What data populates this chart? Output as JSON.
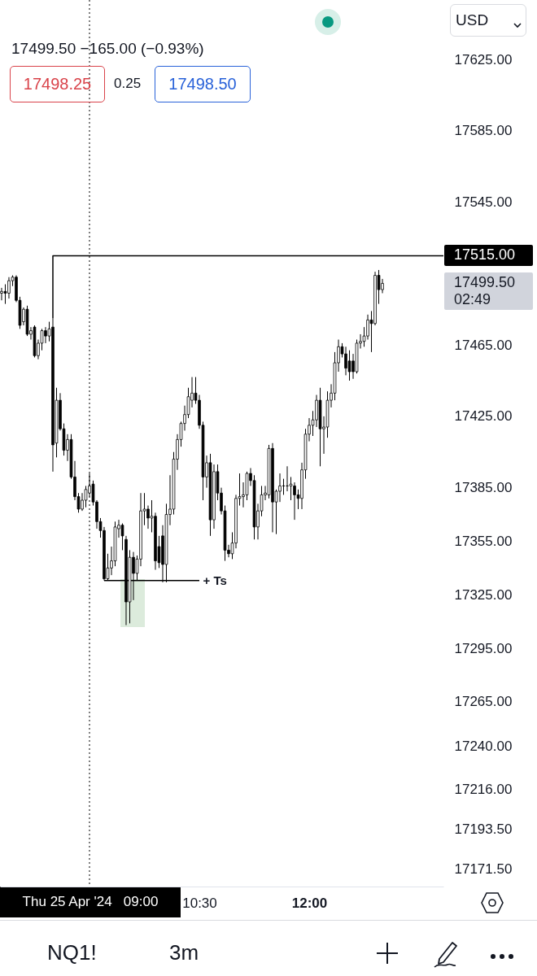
{
  "chart_data": {
    "type": "candlestick",
    "x": [
      7.8,
      7.85,
      7.9,
      7.95,
      8,
      8.05,
      8.1,
      8.15,
      8.2,
      8.25,
      8.3,
      8.35,
      8.4,
      8.45,
      8.5,
      8.55,
      8.6,
      8.65,
      8.7,
      8.75,
      8.8,
      8.85,
      8.9,
      8.95,
      9,
      9.05,
      9.1,
      9.15,
      9.2,
      9.25,
      9.3,
      9.35,
      9.4,
      9.45,
      9.5,
      9.55,
      9.6,
      9.65,
      9.7,
      9.75,
      9.8,
      9.85,
      9.9,
      9.95,
      10,
      10.05,
      10.1,
      10.15,
      10.2,
      10.25,
      10.3,
      10.35,
      10.4,
      10.45,
      10.5,
      10.55,
      10.6,
      10.65,
      10.7,
      10.75,
      10.8,
      10.85,
      10.9,
      10.95,
      11,
      11.05,
      11.1,
      11.15,
      11.2,
      11.25,
      11.3,
      11.35,
      11.4,
      11.45,
      11.5,
      11.55,
      11.6,
      11.65,
      11.7,
      11.75,
      11.8,
      11.85,
      11.9,
      11.95,
      12,
      12.05,
      12.1,
      12.15,
      12.2,
      12.25,
      12.3,
      12.35,
      12.4,
      12.45,
      12.5,
      12.55,
      12.6,
      12.65,
      12.7,
      12.75,
      12.8,
      12.85,
      12.9,
      12.95,
      13
    ],
    "ohlc": [
      [
        17494,
        17497,
        17490,
        17495
      ],
      [
        17495,
        17499,
        17488,
        17494
      ],
      [
        17494,
        17503,
        17491,
        17501
      ],
      [
        17501,
        17504,
        17498,
        17503
      ],
      [
        17503,
        17504,
        17489,
        17490
      ],
      [
        17490,
        17492,
        17474,
        17476
      ],
      [
        17478,
        17486,
        17476,
        17485
      ],
      [
        17485,
        17487,
        17470,
        17471
      ],
      [
        17471,
        17475,
        17468,
        17473
      ],
      [
        17475,
        17476,
        17458,
        17459
      ],
      [
        17459,
        17468,
        17457,
        17466
      ],
      [
        17466,
        17474,
        17462,
        17473
      ],
      [
        17473,
        17475,
        17466,
        17470
      ],
      [
        17470,
        17478,
        17467,
        17474
      ],
      [
        17475,
        17480,
        17394,
        17409
      ],
      [
        17410,
        17441,
        17402,
        17434
      ],
      [
        17434,
        17438,
        17417,
        17418
      ],
      [
        17418,
        17421,
        17403,
        17406
      ],
      [
        17406,
        17415,
        17400,
        17412
      ],
      [
        17412,
        17415,
        17390,
        17391
      ],
      [
        17391,
        17400,
        17378,
        17380
      ],
      [
        17380,
        17382,
        17371,
        17373
      ],
      [
        17373,
        17382,
        17372,
        17378
      ],
      [
        17378,
        17386,
        17374,
        17384
      ],
      [
        17382,
        17393,
        17380,
        17386
      ],
      [
        17387,
        17389,
        17375,
        17377
      ],
      [
        17377,
        17378,
        17362,
        17366
      ],
      [
        17366,
        17368,
        17357,
        17361
      ],
      [
        17361,
        17363,
        17333,
        17334
      ],
      [
        17334,
        17348,
        17333,
        17340
      ],
      [
        17340,
        17352,
        17336,
        17344
      ],
      [
        17344,
        17366,
        17341,
        17363
      ],
      [
        17362,
        17367,
        17357,
        17364
      ],
      [
        17364,
        17365,
        17350,
        17358
      ],
      [
        17356,
        17358,
        17308,
        17321
      ],
      [
        17321,
        17350,
        17309,
        17346
      ],
      [
        17346,
        17349,
        17322,
        17337
      ],
      [
        17337,
        17347,
        17333,
        17345
      ],
      [
        17345,
        17382,
        17341,
        17372
      ],
      [
        17372,
        17382,
        17364,
        17373
      ],
      [
        17373,
        17375,
        17362,
        17368
      ],
      [
        17368,
        17378,
        17360,
        17369
      ],
      [
        17369,
        17371,
        17339,
        17344
      ],
      [
        17352,
        17358,
        17340,
        17343
      ],
      [
        17358,
        17364,
        17332,
        17342
      ],
      [
        17342,
        17376,
        17332,
        17370
      ],
      [
        17370,
        17392,
        17364,
        17373
      ],
      [
        17373,
        17405,
        17370,
        17401
      ],
      [
        17401,
        17415,
        17395,
        17412
      ],
      [
        17412,
        17422,
        17408,
        17421
      ],
      [
        17421,
        17431,
        17417,
        17426
      ],
      [
        17426,
        17441,
        17424,
        17436
      ],
      [
        17434,
        17447,
        17430,
        17438
      ],
      [
        17438,
        17447,
        17432,
        17434
      ],
      [
        17434,
        17437,
        17418,
        17420
      ],
      [
        17420,
        17422,
        17378,
        17391
      ],
      [
        17391,
        17403,
        17385,
        17399
      ],
      [
        17399,
        17404,
        17358,
        17367
      ],
      [
        17367,
        17398,
        17362,
        17394
      ],
      [
        17394,
        17398,
        17378,
        17382
      ],
      [
        17382,
        17385,
        17370,
        17372
      ],
      [
        17372,
        17375,
        17344,
        17350
      ],
      [
        17350,
        17353,
        17346,
        17348
      ],
      [
        17348,
        17360,
        17345,
        17354
      ],
      [
        17354,
        17381,
        17351,
        17379
      ],
      [
        17379,
        17393,
        17375,
        17380
      ],
      [
        17380,
        17388,
        17374,
        17381
      ],
      [
        17381,
        17394,
        17378,
        17393
      ],
      [
        17393,
        17396,
        17386,
        17389
      ],
      [
        17389,
        17392,
        17356,
        17363
      ],
      [
        17363,
        17376,
        17356,
        17372
      ],
      [
        17372,
        17386,
        17369,
        17381
      ],
      [
        17381,
        17386,
        17378,
        17382
      ],
      [
        17381,
        17409,
        17379,
        17407
      ],
      [
        17407,
        17410,
        17360,
        17377
      ],
      [
        17377,
        17384,
        17359,
        17383
      ],
      [
        17383,
        17393,
        17377,
        17386
      ],
      [
        17386,
        17390,
        17381,
        17386
      ],
      [
        17386,
        17397,
        17383,
        17386
      ],
      [
        17386,
        17391,
        17378,
        17387
      ],
      [
        17386,
        17388,
        17367,
        17381
      ],
      [
        17381,
        17384,
        17373,
        17379
      ],
      [
        17379,
        17399,
        17373,
        17395
      ],
      [
        17395,
        17418,
        17390,
        17415
      ],
      [
        17415,
        17424,
        17411,
        17420
      ],
      [
        17420,
        17428,
        17414,
        17423
      ],
      [
        17423,
        17437,
        17419,
        17434
      ],
      [
        17434,
        17441,
        17397,
        17418
      ],
      [
        17418,
        17425,
        17404,
        17419
      ],
      [
        17419,
        17439,
        17413,
        17434
      ],
      [
        17434,
        17443,
        17430,
        17438
      ],
      [
        17438,
        17461,
        17434,
        17455
      ],
      [
        17455,
        17468,
        17450,
        17464
      ],
      [
        17464,
        17466,
        17458,
        17460
      ],
      [
        17460,
        17464,
        17448,
        17452
      ],
      [
        17456,
        17462,
        17445,
        17450
      ],
      [
        17456,
        17460,
        17446,
        17450
      ],
      [
        17450,
        17468,
        17449,
        17466
      ],
      [
        17466,
        17471,
        17463,
        17467
      ],
      [
        17467,
        17475,
        17464,
        17470
      ],
      [
        17470,
        17482,
        17468,
        17479
      ],
      [
        17479,
        17484,
        17461,
        17477
      ],
      [
        17477,
        17506,
        17476,
        17504
      ],
      [
        17504,
        17507,
        17488,
        17496
      ],
      [
        17496,
        17502,
        17494,
        17499.5
      ]
    ],
    "series": [
      {
        "type": "line",
        "color": "#000000",
        "x": [
          8.5,
          8.5,
          13.833
        ],
        "values": [
          17480,
          17515,
          17515
        ]
      },
      {
        "type": "line",
        "color": "#000000",
        "x": [
          9.2,
          10.5
        ],
        "values": [
          17333,
          17333
        ]
      }
    ],
    "xlim": [
      7.778,
      13.833
    ],
    "ylim": [
      17161.5,
      17658.3
    ],
    "xticks": [
      {
        "value": 10.5,
        "label": "10:30"
      },
      {
        "value": 12,
        "label": "12:00"
      }
    ],
    "yticks": [
      {
        "value": 17625,
        "label": "17625.00"
      },
      {
        "value": 17585,
        "label": "17585.00"
      },
      {
        "value": 17545,
        "label": "17545.00"
      },
      {
        "value": 17465,
        "label": "17465.00"
      },
      {
        "value": 17425,
        "label": "17425.00"
      },
      {
        "value": 17385,
        "label": "17385.00"
      },
      {
        "value": 17355,
        "label": "17355.00"
      },
      {
        "value": 17325,
        "label": "17325.00"
      },
      {
        "value": 17295,
        "label": "17295.00"
      },
      {
        "value": 17265,
        "label": "17265.00"
      },
      {
        "value": 17240,
        "label": "17240.00"
      },
      {
        "value": 17216,
        "label": "17216.00"
      },
      {
        "value": 17193.5,
        "label": "17193.50"
      },
      {
        "value": 17171.5,
        "label": "17171.50"
      }
    ],
    "ref_lines": [
      {
        "axis": "x",
        "value": 9,
        "color": "#000000",
        "line_style": "dotted"
      }
    ],
    "annotations": [
      "17499.50 −165.00 (−0.93%)",
      "17498.25",
      "0.25",
      "17498.50",
      "USD",
      "17515.00",
      "17499.50",
      "02:49",
      {
        "text": "+ Ts",
        "x": 10.55,
        "y": 17333
      },
      "Thu 25 Apr '24   09:00",
      "NQ1!",
      "3m"
    ],
    "grid": false
  }
}
